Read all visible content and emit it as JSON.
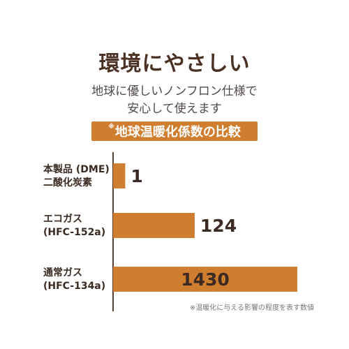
{
  "header": {
    "title": "環境にやさしい",
    "subtitle_line1": "地球に優しいノンフロン仕様で",
    "subtitle_line2": "安心して使えます",
    "banner_mark": "※",
    "banner_label": "地球温暖化係数の比較"
  },
  "footnote": "※温暖化に与える影響の程度を表す数値",
  "colors": {
    "bar": "#cf7e2f",
    "axis": "#5a3f32",
    "label_text": "#3b2a22",
    "value_text": "#3b2a22"
  },
  "chart_data": {
    "type": "bar",
    "orientation": "horizontal",
    "categories": [
      [
        "本製品 (DME)",
        "二酸化炭素"
      ],
      [
        "エコガス",
        "(HFC-152a)"
      ],
      [
        "通常ガス",
        "(HFC-134a)"
      ]
    ],
    "values": [
      1,
      124,
      1430
    ],
    "value_labels": [
      "1",
      "124",
      "1430"
    ],
    "title": "地球温暖化係数の比較",
    "xlabel": "",
    "ylabel": "",
    "note": "values not drawn to a uniform linear scale in the original"
  }
}
